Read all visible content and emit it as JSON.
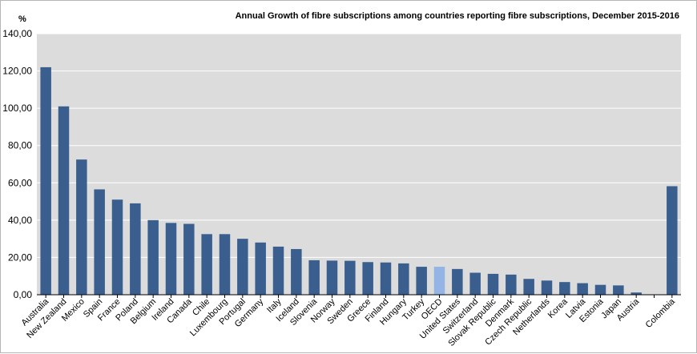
{
  "chart_data": {
    "type": "bar",
    "title": "Annual Growth of fibre subscriptions among countries reporting fibre subscriptions, December 2015-2016",
    "ylabel": "%",
    "xlabel": "",
    "ylim": [
      0,
      140
    ],
    "yticks": [
      "0,00",
      "20,00",
      "40,00",
      "60,00",
      "80,00",
      "100,00",
      "120,00",
      "140,00"
    ],
    "grid": true,
    "categories": [
      "Australia",
      "New Zealand",
      "Mexico",
      "Spain",
      "France",
      "Poland",
      "Belgium",
      "Ireland",
      "Canada",
      "Chile",
      "Luxembourg",
      "Portugal",
      "Germany",
      "Italy",
      "Iceland",
      "Slovenia",
      "Norway",
      "Sweden",
      "Greece",
      "Finland",
      "Hungary",
      "Turkey",
      "OECD",
      "United States",
      "Switzerland",
      "Slovak Republic",
      "Denmark",
      "Czech Republic",
      "Netherlands",
      "Korea",
      "Latvia",
      "Estonia",
      "Japan",
      "Austria",
      "",
      "Colombia"
    ],
    "values": [
      122,
      101,
      72.5,
      56.5,
      51,
      49,
      40,
      38.5,
      38,
      32.5,
      32.5,
      30,
      28,
      25.8,
      24.5,
      18.5,
      18.3,
      18.2,
      17.5,
      17.3,
      16.8,
      15,
      15,
      13.8,
      11.8,
      11.2,
      10.8,
      8.5,
      7.6,
      6.8,
      6.2,
      5.3,
      5,
      1.2,
      null,
      58.2
    ],
    "colors": {
      "bar": "#3a5f8f",
      "highlight": "#93b4e4",
      "plot_bg": "#dcdcdc",
      "grid": "#ffffff"
    },
    "highlight_category": "OECD"
  }
}
